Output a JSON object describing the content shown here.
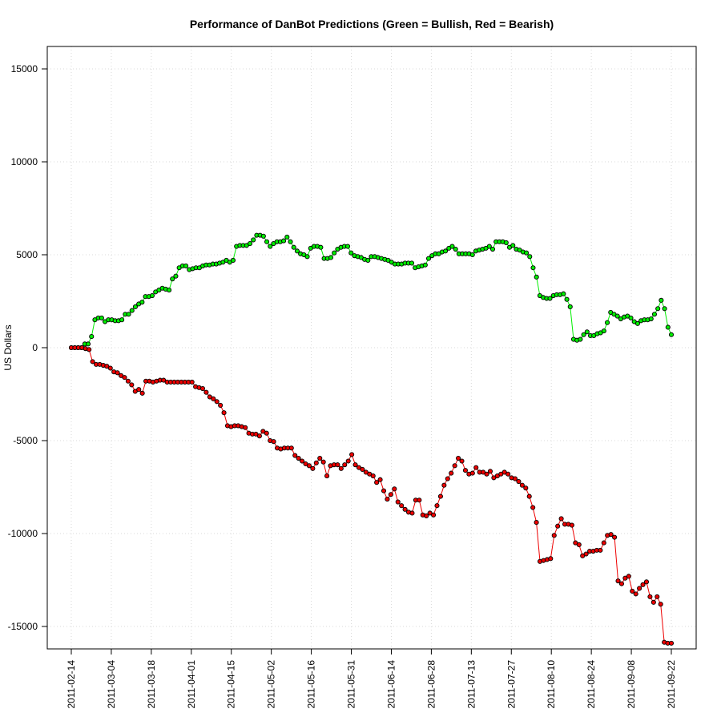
{
  "chart_data": {
    "type": "line",
    "title": "Performance of DanBot Predictions (Green = Bullish, Red = Bearish)",
    "xlabel": "",
    "ylabel": "US Dollars",
    "x_tick_labels": [
      "2011-02-14",
      "2011-03-04",
      "2011-03-18",
      "2011-04-01",
      "2011-04-15",
      "2011-05-02",
      "2011-05-16",
      "2011-05-31",
      "2011-06-14",
      "2011-06-28",
      "2011-07-13",
      "2011-07-27",
      "2011-08-10",
      "2011-08-24",
      "2011-09-08",
      "2011-09-22"
    ],
    "y_ticks": [
      15000,
      10000,
      5000,
      0,
      -5000,
      -10000,
      -15000
    ],
    "ylim": [
      -16200,
      16300
    ],
    "grid": true,
    "series": [
      {
        "color": "#00ee00",
        "values": [
          0,
          0,
          0,
          0,
          200,
          200,
          600,
          1500,
          1600,
          1600,
          1400,
          1500,
          1500,
          1450,
          1450,
          1500,
          1800,
          1800,
          2000,
          2200,
          2350,
          2450,
          2750,
          2750,
          2800,
          3000,
          3100,
          3200,
          3150,
          3100,
          3700,
          3850,
          4300,
          4400,
          4400,
          4200,
          4250,
          4300,
          4300,
          4400,
          4450,
          4450,
          4500,
          4500,
          4550,
          4600,
          4700,
          4600,
          4700,
          5450,
          5500,
          5500,
          5500,
          5600,
          5800,
          6050,
          6050,
          6000,
          5700,
          5450,
          5600,
          5700,
          5700,
          5750,
          5950,
          5700,
          5400,
          5200,
          5050,
          5000,
          4900,
          5350,
          5450,
          5450,
          5400,
          4800,
          4800,
          4850,
          5100,
          5300,
          5400,
          5450,
          5450,
          5100,
          4950,
          4900,
          4850,
          4750,
          4700,
          4900,
          4900,
          4850,
          4800,
          4750,
          4700,
          4600,
          4500,
          4500,
          4500,
          4550,
          4550,
          4550,
          4300,
          4350,
          4400,
          4450,
          4800,
          4950,
          5050,
          5050,
          5150,
          5200,
          5350,
          5450,
          5300,
          5050,
          5050,
          5050,
          5050,
          5000,
          5200,
          5250,
          5300,
          5350,
          5450,
          5300,
          5700,
          5700,
          5700,
          5650,
          5400,
          5500,
          5300,
          5250,
          5150,
          5100,
          4900,
          4300,
          3800,
          2800,
          2700,
          2650,
          2650,
          2800,
          2850,
          2850,
          2900,
          2600,
          2200,
          450,
          400,
          450,
          700,
          850,
          650,
          650,
          750,
          800,
          900,
          1350,
          1900,
          1800,
          1700,
          1550,
          1650,
          1700,
          1600,
          1400,
          1300,
          1450,
          1500,
          1500,
          1550,
          1800,
          2100,
          2550,
          2100,
          1100,
          700
        ]
      },
      {
        "color": "#ee0000",
        "values": [
          0,
          0,
          0,
          0,
          -50,
          -100,
          -750,
          -900,
          -900,
          -950,
          -1000,
          -1100,
          -1300,
          -1350,
          -1500,
          -1600,
          -1800,
          -2000,
          -2350,
          -2250,
          -2450,
          -1800,
          -1800,
          -1850,
          -1800,
          -1750,
          -1750,
          -1850,
          -1850,
          -1850,
          -1850,
          -1850,
          -1850,
          -1850,
          -1850,
          -2100,
          -2150,
          -2200,
          -2400,
          -2650,
          -2750,
          -2900,
          -3100,
          -3500,
          -4200,
          -4250,
          -4200,
          -4200,
          -4250,
          -4300,
          -4600,
          -4650,
          -4650,
          -4750,
          -4500,
          -4600,
          -5000,
          -5050,
          -5400,
          -5450,
          -5400,
          -5400,
          -5400,
          -5800,
          -5950,
          -6100,
          -6250,
          -6350,
          -6500,
          -6200,
          -5950,
          -6150,
          -6900,
          -6350,
          -6300,
          -6300,
          -6500,
          -6300,
          -6100,
          -5750,
          -6300,
          -6450,
          -6550,
          -6700,
          -6800,
          -6900,
          -7250,
          -7100,
          -7700,
          -8150,
          -7900,
          -7600,
          -8300,
          -8500,
          -8700,
          -8850,
          -8900,
          -8200,
          -8200,
          -9000,
          -9050,
          -8900,
          -9000,
          -8500,
          -8000,
          -7400,
          -7050,
          -6750,
          -6350,
          -5950,
          -6100,
          -6600,
          -6800,
          -6750,
          -6450,
          -6700,
          -6700,
          -6800,
          -6650,
          -7000,
          -6900,
          -6800,
          -6700,
          -6800,
          -7000,
          -7050,
          -7200,
          -7400,
          -7550,
          -8000,
          -8600,
          -9400,
          -11500,
          -11450,
          -11400,
          -11350,
          -10100,
          -9600,
          -9200,
          -9500,
          -9500,
          -9550,
          -10500,
          -10600,
          -11200,
          -11100,
          -10950,
          -10950,
          -10900,
          -10900,
          -10500,
          -10100,
          -10050,
          -10200,
          -12550,
          -12700,
          -12400,
          -12300,
          -13100,
          -13250,
          -12950,
          -12750,
          -12600,
          -13400,
          -13700,
          -13400,
          -13800,
          -15850,
          -15900,
          -15900
        ]
      }
    ]
  }
}
